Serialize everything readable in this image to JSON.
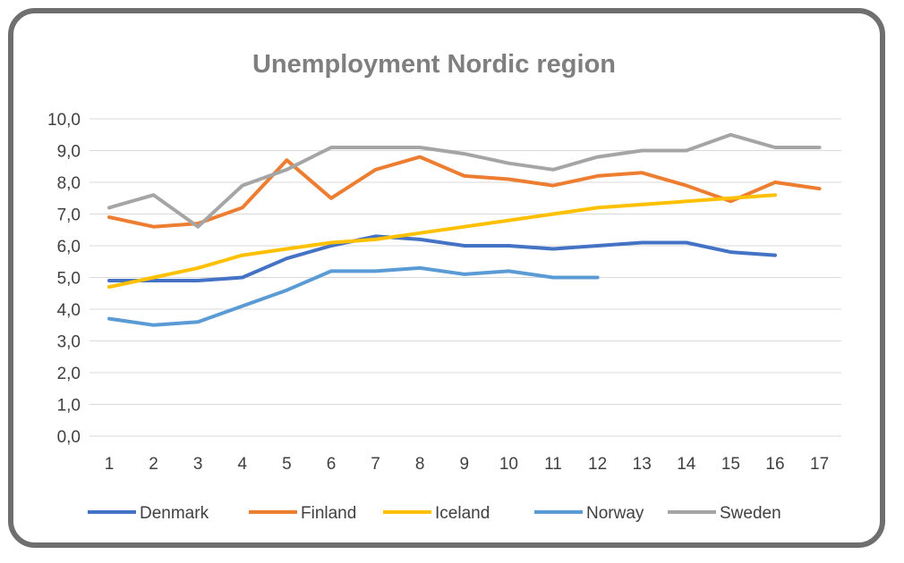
{
  "chart_data": {
    "type": "line",
    "title": "Unemployment Nordic region",
    "xlabel": "",
    "ylabel": "",
    "x": [
      "1",
      "2",
      "3",
      "4",
      "5",
      "6",
      "7",
      "8",
      "9",
      "10",
      "11",
      "12",
      "13",
      "14",
      "15",
      "16",
      "17"
    ],
    "yticks": [
      "0,0",
      "1,0",
      "2,0",
      "3,0",
      "4,0",
      "5,0",
      "6,0",
      "7,0",
      "8,0",
      "9,0",
      "10,0"
    ],
    "ylim": [
      0,
      10
    ],
    "grid": true,
    "legend_position": "bottom",
    "series": [
      {
        "name": "Denmark",
        "color": "#4472c4",
        "values": [
          4.9,
          4.9,
          4.9,
          5.0,
          5.6,
          6.0,
          6.3,
          6.2,
          6.0,
          6.0,
          5.9,
          6.0,
          6.1,
          6.1,
          5.8,
          5.7,
          null
        ]
      },
      {
        "name": "Finland",
        "color": "#ed7d31",
        "values": [
          6.9,
          6.6,
          6.7,
          7.2,
          8.7,
          7.5,
          8.4,
          8.8,
          8.2,
          8.1,
          7.9,
          8.2,
          8.3,
          7.9,
          7.4,
          8.0,
          7.8
        ]
      },
      {
        "name": "Iceland",
        "color": "#ffc000",
        "values": [
          4.7,
          5.0,
          5.3,
          5.7,
          5.9,
          6.1,
          6.2,
          6.4,
          6.6,
          6.8,
          7.0,
          7.2,
          7.3,
          7.4,
          7.5,
          7.6,
          null
        ]
      },
      {
        "name": "Norway",
        "color": "#5b9bd5",
        "values": [
          3.7,
          3.5,
          3.6,
          4.1,
          4.6,
          5.2,
          5.2,
          5.3,
          5.1,
          5.2,
          5.0,
          5.0,
          null,
          null,
          null,
          null,
          null
        ]
      },
      {
        "name": "Sweden",
        "color": "#a5a5a5",
        "values": [
          7.2,
          7.6,
          6.6,
          7.9,
          8.4,
          9.1,
          9.1,
          9.1,
          8.9,
          8.6,
          8.4,
          8.8,
          9.0,
          9.0,
          9.5,
          9.1,
          9.1
        ]
      }
    ]
  }
}
